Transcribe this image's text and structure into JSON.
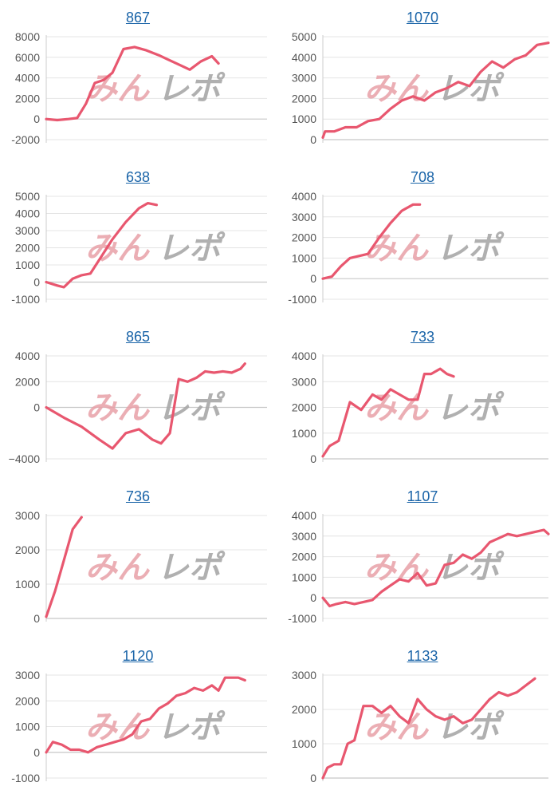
{
  "colors": {
    "line": "#e8576f",
    "title": "#1a64a8",
    "watermark_pink": "#e8a0a8",
    "watermark_gray": "#a8a8a8"
  },
  "watermark": {
    "part1": "みん",
    "part2": "レポ"
  },
  "chart_data": [
    {
      "type": "line",
      "title": "867",
      "ylim": [
        -2000,
        8000
      ],
      "yticks": [
        8000,
        6000,
        4000,
        2000,
        0,
        -2000
      ],
      "x_max": 100,
      "series": [
        {
          "x": [
            0,
            5,
            10,
            14,
            18,
            22,
            26,
            30,
            35,
            40,
            45,
            51,
            55,
            60,
            65,
            70,
            75,
            78
          ],
          "y": [
            0,
            -100,
            0,
            100,
            1500,
            3500,
            3800,
            4500,
            6800,
            7000,
            6700,
            6200,
            5800,
            5300,
            4800,
            5600,
            6100,
            5400
          ]
        }
      ]
    },
    {
      "type": "line",
      "title": "1070",
      "ylim": [
        0,
        5000
      ],
      "yticks": [
        5000,
        4000,
        3000,
        2000,
        1000,
        0
      ],
      "x_max": 100,
      "series": [
        {
          "x": [
            0,
            1,
            5,
            10,
            15,
            20,
            25,
            30,
            35,
            40,
            45,
            50,
            55,
            60,
            65,
            70,
            75,
            80,
            85,
            90,
            95,
            100
          ],
          "y": [
            100,
            400,
            400,
            600,
            600,
            900,
            1000,
            1500,
            1900,
            2100,
            1900,
            2300,
            2500,
            2800,
            2600,
            3300,
            3800,
            3500,
            3900,
            4100,
            4600,
            4700
          ]
        }
      ]
    },
    {
      "type": "line",
      "title": "638",
      "ylim": [
        -1000,
        5000
      ],
      "yticks": [
        5000,
        4000,
        3000,
        2000,
        1000,
        0,
        -1000
      ],
      "x_max": 100,
      "series": [
        {
          "x": [
            0,
            5,
            8,
            12,
            16,
            20,
            25,
            30,
            36,
            42,
            46,
            50
          ],
          "y": [
            0,
            -200,
            -300,
            200,
            400,
            500,
            1500,
            2500,
            3500,
            4300,
            4600,
            4500
          ]
        }
      ]
    },
    {
      "type": "line",
      "title": "708",
      "ylim": [
        -1000,
        4000
      ],
      "yticks": [
        4000,
        3000,
        2000,
        1000,
        0,
        -1000
      ],
      "x_max": 100,
      "series": [
        {
          "x": [
            0,
            4,
            8,
            12,
            16,
            20,
            25,
            30,
            35,
            40,
            43
          ],
          "y": [
            0,
            100,
            600,
            1000,
            1100,
            1200,
            2000,
            2700,
            3300,
            3600,
            3600
          ]
        }
      ]
    },
    {
      "type": "line",
      "title": "865",
      "ylim": [
        -4000,
        4000
      ],
      "yticks": [
        4000,
        2000,
        0,
        -4000
      ],
      "ytick_labels": [
        "4000",
        "2000",
        "0",
        "−4000"
      ],
      "x_max": 100,
      "series": [
        {
          "x": [
            0,
            8,
            16,
            24,
            30,
            36,
            42,
            48,
            52,
            56,
            60,
            64,
            68,
            72,
            76,
            80,
            84,
            88,
            90
          ],
          "y": [
            0,
            -800,
            -1500,
            -2500,
            -3200,
            -2000,
            -1700,
            -2500,
            -2800,
            -2000,
            2200,
            2000,
            2300,
            2800,
            2700,
            2800,
            2700,
            3000,
            3400
          ]
        }
      ]
    },
    {
      "type": "line",
      "title": "733",
      "ylim": [
        0,
        4000
      ],
      "yticks": [
        4000,
        3000,
        2000,
        1000,
        0
      ],
      "x_max": 100,
      "series": [
        {
          "x": [
            0,
            3,
            7,
            12,
            17,
            22,
            26,
            30,
            34,
            38,
            42,
            45,
            48,
            52,
            55,
            58
          ],
          "y": [
            100,
            500,
            700,
            2200,
            1900,
            2500,
            2300,
            2700,
            2500,
            2300,
            2300,
            3300,
            3300,
            3500,
            3300,
            3200
          ]
        }
      ]
    },
    {
      "type": "line",
      "title": "736",
      "ylim": [
        0,
        3000
      ],
      "yticks": [
        3000,
        2000,
        1000,
        0
      ],
      "x_max": 100,
      "series": [
        {
          "x": [
            0,
            4,
            8,
            12,
            16
          ],
          "y": [
            50,
            800,
            1700,
            2600,
            2950
          ]
        }
      ]
    },
    {
      "type": "line",
      "title": "1107",
      "ylim": [
        -1000,
        4000
      ],
      "yticks": [
        4000,
        3000,
        2000,
        1000,
        0,
        -1000
      ],
      "x_max": 100,
      "series": [
        {
          "x": [
            0,
            3,
            6,
            10,
            14,
            18,
            22,
            26,
            30,
            34,
            38,
            42,
            46,
            50,
            54,
            58,
            62,
            66,
            70,
            74,
            78,
            82,
            86,
            90,
            94,
            98,
            100
          ],
          "y": [
            0,
            -400,
            -300,
            -200,
            -300,
            -200,
            -100,
            300,
            600,
            900,
            800,
            1200,
            600,
            700,
            1600,
            1700,
            2100,
            1900,
            2200,
            2700,
            2900,
            3100,
            3000,
            3100,
            3200,
            3300,
            3100
          ]
        }
      ]
    },
    {
      "type": "line",
      "title": "1120",
      "ylim": [
        -1000,
        3000
      ],
      "yticks": [
        3000,
        2000,
        1000,
        0,
        -1000
      ],
      "x_max": 100,
      "series": [
        {
          "x": [
            0,
            3,
            7,
            11,
            15,
            19,
            23,
            27,
            31,
            35,
            39,
            43,
            47,
            51,
            55,
            59,
            63,
            67,
            71,
            75,
            78,
            81,
            84,
            87,
            90
          ],
          "y": [
            0,
            400,
            300,
            100,
            100,
            0,
            200,
            300,
            400,
            500,
            700,
            1200,
            1300,
            1700,
            1900,
            2200,
            2300,
            2500,
            2400,
            2600,
            2400,
            2900,
            2900,
            2900,
            2800
          ]
        }
      ]
    },
    {
      "type": "line",
      "title": "1133",
      "ylim": [
        0,
        3000
      ],
      "yticks": [
        3000,
        2000,
        1000,
        0
      ],
      "x_max": 100,
      "series": [
        {
          "x": [
            0,
            2,
            5,
            8,
            11,
            14,
            18,
            22,
            26,
            30,
            34,
            38,
            42,
            46,
            50,
            54,
            58,
            62,
            66,
            70,
            74,
            78,
            82,
            86,
            90,
            94
          ],
          "y": [
            0,
            300,
            400,
            400,
            1000,
            1100,
            2100,
            2100,
            1900,
            2100,
            1800,
            1600,
            2300,
            2000,
            1800,
            1700,
            1800,
            1600,
            1700,
            2000,
            2300,
            2500,
            2400,
            2500,
            2700,
            2900
          ]
        }
      ]
    }
  ]
}
